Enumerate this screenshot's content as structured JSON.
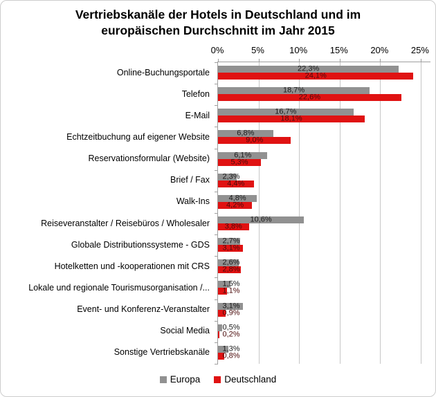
{
  "title": {
    "line1": "Vertriebskanäle der Hotels in Deutschland und im",
    "line2": "europäischen Durchschnitt  im Jahr 2015"
  },
  "chart_data": {
    "type": "bar",
    "orientation": "horizontal",
    "title": "Vertriebskanäle der Hotels in Deutschland und im europäischen Durchschnitt im Jahr 2015",
    "categories": [
      "Online-Buchungsportale",
      "Telefon",
      "E-Mail",
      "Echtzeitbuchung auf eigener Website",
      "Reservationsformular (Website)",
      "Brief / Fax",
      "Walk-Ins",
      "Reiseveranstalter / Reisebüros / Wholesaler",
      "Globale Distributionssysteme - GDS",
      "Hotelketten und -kooperationen mit CRS",
      "Lokale und regionale Tourismusorganisation /...",
      "Event- und Konferenz-Veranstalter",
      "Social Media",
      "Sonstige Vertriebskanäle"
    ],
    "series": [
      {
        "name": "Europa",
        "color": "#919191",
        "label_color": "#1a1a1a",
        "values": [
          22.3,
          18.7,
          16.7,
          6.8,
          6.1,
          2.3,
          4.8,
          10.6,
          2.7,
          2.6,
          1.5,
          3.1,
          0.5,
          1.3
        ]
      },
      {
        "name": "Deutschland",
        "color": "#e01212",
        "label_color": "#4a0a0a",
        "values": [
          24.1,
          22.6,
          18.1,
          9.0,
          5.3,
          4.4,
          4.2,
          3.8,
          3.1,
          2.8,
          1.1,
          0.9,
          0.2,
          0.8
        ]
      }
    ],
    "x_tick_labels": [
      "0%",
      "5%",
      "10%",
      "15%",
      "20%",
      "25%"
    ],
    "x_tick_values": [
      0,
      5,
      10,
      15,
      20,
      25
    ],
    "xlim": [
      0,
      26.2
    ],
    "value_format": "comma-decimal-percent",
    "gridlines": "vertical",
    "legend_position": "bottom",
    "data_labels": true
  }
}
